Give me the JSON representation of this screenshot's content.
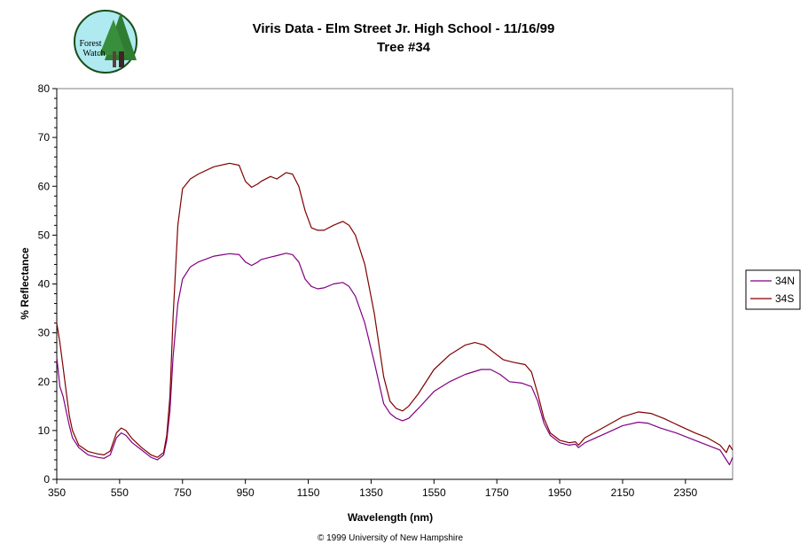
{
  "logo": {
    "line1": "Forest",
    "line2": "Watch"
  },
  "chart_data": {
    "type": "line",
    "title": "Viris Data - Elm Street Jr. High School - 11/16/99",
    "subtitle": "Tree #34",
    "xlabel": "Wavelength (nm)",
    "ylabel": "% Reflectance",
    "xlim": [
      350,
      2500
    ],
    "ylim": [
      0,
      80
    ],
    "x_ticks": [
      350,
      550,
      750,
      950,
      1150,
      1350,
      1550,
      1750,
      1950,
      2150,
      2350
    ],
    "y_ticks": [
      0,
      10,
      20,
      30,
      40,
      50,
      60,
      70,
      80
    ],
    "grid": false,
    "legend_position": "right",
    "copyright": "© 1999 University of New Hampshire",
    "series": [
      {
        "name": "34N",
        "color": "#800080",
        "points": [
          [
            350,
            25
          ],
          [
            360,
            19
          ],
          [
            370,
            17
          ],
          [
            380,
            14
          ],
          [
            390,
            11
          ],
          [
            400,
            8.5
          ],
          [
            420,
            6.5
          ],
          [
            450,
            5
          ],
          [
            480,
            4.5
          ],
          [
            500,
            4.3
          ],
          [
            520,
            5
          ],
          [
            540,
            8.5
          ],
          [
            555,
            9.5
          ],
          [
            570,
            9
          ],
          [
            590,
            7.5
          ],
          [
            620,
            6
          ],
          [
            650,
            4.5
          ],
          [
            670,
            4
          ],
          [
            690,
            5
          ],
          [
            700,
            8
          ],
          [
            710,
            14
          ],
          [
            720,
            25
          ],
          [
            735,
            36
          ],
          [
            750,
            41
          ],
          [
            775,
            43.5
          ],
          [
            800,
            44.5
          ],
          [
            850,
            45.7
          ],
          [
            900,
            46.2
          ],
          [
            930,
            46
          ],
          [
            950,
            44.5
          ],
          [
            970,
            43.8
          ],
          [
            990,
            44.5
          ],
          [
            1000,
            45
          ],
          [
            1030,
            45.5
          ],
          [
            1050,
            45.8
          ],
          [
            1080,
            46.3
          ],
          [
            1100,
            46
          ],
          [
            1120,
            44.5
          ],
          [
            1140,
            41
          ],
          [
            1160,
            39.5
          ],
          [
            1180,
            39
          ],
          [
            1200,
            39.2
          ],
          [
            1230,
            40
          ],
          [
            1260,
            40.3
          ],
          [
            1280,
            39.5
          ],
          [
            1300,
            37.5
          ],
          [
            1330,
            32
          ],
          [
            1360,
            24
          ],
          [
            1390,
            15.5
          ],
          [
            1410,
            13.5
          ],
          [
            1430,
            12.5
          ],
          [
            1450,
            12
          ],
          [
            1470,
            12.5
          ],
          [
            1500,
            14.5
          ],
          [
            1550,
            18
          ],
          [
            1600,
            20
          ],
          [
            1650,
            21.5
          ],
          [
            1700,
            22.5
          ],
          [
            1730,
            22.5
          ],
          [
            1760,
            21.5
          ],
          [
            1790,
            20
          ],
          [
            1830,
            19.7
          ],
          [
            1860,
            19
          ],
          [
            1880,
            16
          ],
          [
            1900,
            11.5
          ],
          [
            1920,
            9
          ],
          [
            1950,
            7.5
          ],
          [
            1980,
            7
          ],
          [
            2000,
            7.2
          ],
          [
            2010,
            6.5
          ],
          [
            2030,
            7.5
          ],
          [
            2100,
            9.5
          ],
          [
            2150,
            11
          ],
          [
            2200,
            11.7
          ],
          [
            2230,
            11.5
          ],
          [
            2270,
            10.5
          ],
          [
            2320,
            9.5
          ],
          [
            2380,
            8
          ],
          [
            2420,
            7
          ],
          [
            2460,
            6
          ],
          [
            2480,
            4
          ],
          [
            2490,
            3
          ],
          [
            2500,
            4.5
          ]
        ]
      },
      {
        "name": "34S",
        "color": "#800000",
        "points": [
          [
            350,
            32
          ],
          [
            360,
            28
          ],
          [
            370,
            23
          ],
          [
            380,
            18
          ],
          [
            390,
            13
          ],
          [
            400,
            10
          ],
          [
            420,
            7
          ],
          [
            450,
            5.7
          ],
          [
            480,
            5.2
          ],
          [
            500,
            5
          ],
          [
            520,
            5.8
          ],
          [
            540,
            9.5
          ],
          [
            555,
            10.5
          ],
          [
            570,
            10
          ],
          [
            590,
            8.3
          ],
          [
            620,
            6.5
          ],
          [
            650,
            5
          ],
          [
            670,
            4.5
          ],
          [
            690,
            5.5
          ],
          [
            700,
            9
          ],
          [
            710,
            17
          ],
          [
            720,
            33
          ],
          [
            735,
            52
          ],
          [
            750,
            59.5
          ],
          [
            775,
            61.5
          ],
          [
            800,
            62.5
          ],
          [
            850,
            64
          ],
          [
            900,
            64.7
          ],
          [
            930,
            64.3
          ],
          [
            950,
            61
          ],
          [
            970,
            59.8
          ],
          [
            990,
            60.5
          ],
          [
            1000,
            61
          ],
          [
            1030,
            62
          ],
          [
            1050,
            61.5
          ],
          [
            1080,
            62.8
          ],
          [
            1100,
            62.5
          ],
          [
            1120,
            60
          ],
          [
            1140,
            55
          ],
          [
            1160,
            51.5
          ],
          [
            1180,
            51
          ],
          [
            1200,
            51
          ],
          [
            1230,
            52
          ],
          [
            1260,
            52.8
          ],
          [
            1280,
            52
          ],
          [
            1300,
            50
          ],
          [
            1330,
            44
          ],
          [
            1360,
            34
          ],
          [
            1390,
            21
          ],
          [
            1410,
            16
          ],
          [
            1430,
            14.5
          ],
          [
            1450,
            14
          ],
          [
            1470,
            15
          ],
          [
            1500,
            17.5
          ],
          [
            1550,
            22.5
          ],
          [
            1600,
            25.5
          ],
          [
            1650,
            27.5
          ],
          [
            1680,
            28
          ],
          [
            1710,
            27.5
          ],
          [
            1740,
            26
          ],
          [
            1770,
            24.5
          ],
          [
            1800,
            24
          ],
          [
            1840,
            23.5
          ],
          [
            1860,
            22
          ],
          [
            1880,
            17.5
          ],
          [
            1900,
            12.5
          ],
          [
            1920,
            9.5
          ],
          [
            1950,
            8
          ],
          [
            1980,
            7.5
          ],
          [
            2000,
            7.7
          ],
          [
            2010,
            7
          ],
          [
            2030,
            8.5
          ],
          [
            2100,
            11
          ],
          [
            2150,
            12.8
          ],
          [
            2200,
            13.8
          ],
          [
            2240,
            13.5
          ],
          [
            2280,
            12.5
          ],
          [
            2330,
            11
          ],
          [
            2380,
            9.5
          ],
          [
            2420,
            8.5
          ],
          [
            2460,
            7
          ],
          [
            2480,
            5.5
          ],
          [
            2490,
            7
          ],
          [
            2500,
            6
          ]
        ]
      }
    ]
  }
}
